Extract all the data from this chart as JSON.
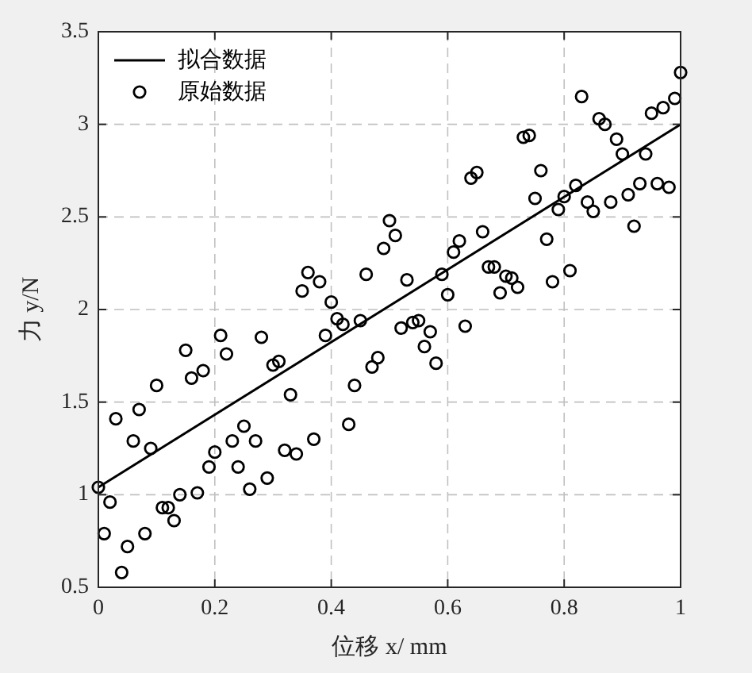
{
  "chart_data": {
    "type": "scatter",
    "xlabel": "位移 x/ mm",
    "ylabel": "力 y/N",
    "x": [
      0,
      0.01,
      0.02,
      0.03,
      0.04,
      0.05,
      0.06,
      0.07,
      0.08,
      0.09,
      0.1,
      0.11,
      0.12,
      0.13,
      0.14,
      0.15,
      0.16,
      0.17,
      0.18,
      0.19,
      0.2,
      0.21,
      0.22,
      0.23,
      0.24,
      0.25,
      0.26,
      0.27,
      0.28,
      0.29,
      0.3,
      0.31,
      0.32,
      0.33,
      0.34,
      0.35,
      0.36,
      0.37,
      0.38,
      0.39,
      0.4,
      0.41,
      0.42,
      0.43,
      0.44,
      0.45,
      0.46,
      0.47,
      0.48,
      0.49,
      0.5,
      0.51,
      0.52,
      0.53,
      0.54,
      0.55,
      0.56,
      0.57,
      0.58,
      0.59,
      0.6,
      0.61,
      0.62,
      0.63,
      0.64,
      0.65,
      0.66,
      0.67,
      0.68,
      0.69,
      0.7,
      0.71,
      0.72,
      0.73,
      0.74,
      0.75,
      0.76,
      0.77,
      0.78,
      0.79,
      0.8,
      0.81,
      0.82,
      0.83,
      0.84,
      0.85,
      0.86,
      0.87,
      0.88,
      0.89,
      0.9,
      0.91,
      0.92,
      0.93,
      0.94,
      0.95,
      0.96,
      0.97,
      0.98,
      0.99,
      1
    ],
    "series": [
      {
        "name": "拟合数据",
        "type": "line",
        "color": "#000000",
        "x": [
          0,
          1
        ],
        "values": [
          1.04,
          3.0
        ]
      },
      {
        "name": "原始数据",
        "color": "#000000",
        "marker": "circle",
        "values": [
          1.04,
          0.79,
          0.96,
          1.41,
          0.58,
          0.72,
          1.29,
          1.46,
          0.79,
          1.25,
          1.59,
          0.93,
          0.93,
          0.86,
          1.0,
          1.78,
          1.63,
          1.01,
          1.67,
          1.15,
          1.23,
          1.86,
          1.76,
          1.29,
          1.15,
          1.37,
          1.03,
          1.29,
          1.85,
          1.09,
          1.7,
          1.72,
          1.24,
          1.54,
          1.22,
          2.1,
          2.2,
          1.3,
          2.15,
          1.86,
          2.04,
          1.95,
          1.92,
          1.38,
          1.59,
          1.94,
          2.19,
          1.69,
          1.74,
          2.33,
          2.48,
          2.4,
          1.9,
          2.16,
          1.93,
          1.94,
          1.8,
          1.88,
          1.71,
          2.19,
          2.08,
          2.31,
          2.37,
          1.91,
          2.71,
          2.74,
          2.42,
          2.23,
          2.23,
          2.09,
          2.18,
          2.17,
          2.12,
          2.93,
          2.94,
          2.6,
          2.75,
          2.38,
          2.15,
          2.54,
          2.61,
          2.21,
          2.67,
          3.15,
          2.58,
          2.53,
          3.03,
          3.0,
          2.58,
          2.92,
          2.84,
          2.62,
          2.45,
          2.68,
          2.84,
          3.06,
          2.68,
          3.09,
          2.66,
          3.14,
          3.28
        ]
      }
    ],
    "xlim": [
      0,
      1
    ],
    "xticks": [
      0,
      0.2,
      0.4,
      0.6,
      0.8,
      1
    ],
    "ylim": [
      0.5,
      3.5
    ],
    "yticks": [
      0.5,
      1,
      1.5,
      2,
      2.5,
      3,
      3.5
    ],
    "grid": true,
    "legend": "top left"
  }
}
